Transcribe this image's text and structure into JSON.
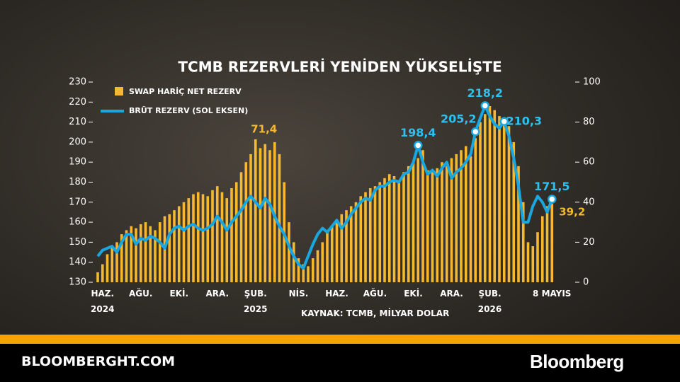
{
  "title": "TCMB REZERVLERİ YENİDEN YÜKSELİŞTE",
  "chart_data": {
    "type": "bar-line",
    "source": "KAYNAK: TCMB, MİLYAR DOLAR",
    "categories": [
      null,
      "HAZ.\n2024",
      null,
      null,
      null,
      null,
      null,
      null,
      null,
      "AĞU.",
      null,
      null,
      null,
      null,
      null,
      null,
      null,
      "EKİ.",
      null,
      null,
      null,
      null,
      null,
      null,
      null,
      "ARA.",
      null,
      null,
      null,
      null,
      null,
      null,
      null,
      "ŞUB.\n2025",
      null,
      null,
      null,
      null,
      null,
      null,
      null,
      null,
      "NİS.",
      null,
      null,
      null,
      null,
      null,
      null,
      null,
      "HAZ.",
      null,
      null,
      null,
      null,
      null,
      null,
      null,
      "AĞU.",
      null,
      null,
      null,
      null,
      null,
      null,
      null,
      "EKİ.",
      null,
      null,
      null,
      null,
      null,
      null,
      null,
      "ARA.",
      null,
      null,
      null,
      null,
      null,
      null,
      null,
      "ŞUB.\n2026",
      null,
      null,
      null,
      null,
      null,
      null,
      null,
      null,
      null,
      null,
      null,
      null,
      "8 MAYIS"
    ],
    "ylim": [
      130,
      230
    ],
    "yticks": [
      130,
      140,
      150,
      160,
      170,
      180,
      190,
      200,
      210,
      220,
      230
    ],
    "y2lim": [
      0,
      100
    ],
    "y2ticks": [
      0,
      20,
      40,
      60,
      80,
      100
    ],
    "series": [
      {
        "name": "SWAP HARİÇ NET REZERV",
        "type": "bar",
        "axis": "y2",
        "color": "#f5b82e",
        "values": [
          5,
          9,
          14,
          18,
          20,
          24,
          26,
          28,
          27,
          29,
          30,
          28,
          26,
          30,
          33,
          34,
          36,
          38,
          40,
          42,
          44,
          45,
          44,
          43,
          46,
          48,
          45,
          42,
          47,
          50,
          55,
          60,
          64,
          71.4,
          67,
          69,
          66,
          70,
          64,
          50,
          30,
          20,
          12,
          9,
          8,
          12,
          16,
          20,
          26,
          28,
          31,
          34,
          36,
          38,
          40,
          43,
          45,
          47,
          48,
          50,
          52,
          54,
          53,
          51,
          55,
          58,
          60,
          62,
          66,
          56,
          55,
          57,
          60,
          58,
          62,
          64,
          66,
          68,
          63,
          72,
          80,
          84,
          88,
          86,
          83,
          80,
          78,
          70,
          58,
          40,
          20,
          18,
          25,
          33,
          38,
          39.2
        ],
        "value_labels": [
          null,
          null,
          null,
          null,
          null,
          null,
          null,
          null,
          null,
          null,
          null,
          null,
          null,
          null,
          null,
          null,
          null,
          null,
          null,
          null,
          null,
          null,
          null,
          null,
          null,
          null,
          null,
          null,
          null,
          null,
          null,
          null,
          null,
          "71,4",
          null,
          null,
          null,
          null,
          null,
          null,
          null,
          null,
          null,
          null,
          null,
          null,
          null,
          null,
          null,
          null,
          null,
          null,
          null,
          null,
          null,
          null,
          null,
          null,
          null,
          null,
          null,
          null,
          null,
          null,
          null,
          null,
          null,
          null,
          null,
          null,
          null,
          null,
          null,
          null,
          null,
          null,
          null,
          null,
          null,
          null,
          null,
          null,
          null,
          null,
          null,
          null,
          null,
          null,
          null,
          null,
          null,
          null,
          null,
          null,
          null,
          "39,2"
        ]
      },
      {
        "name": "BRÜT REZERV (SOL EKSEN)",
        "type": "line",
        "color": "#1aa7e0",
        "values": [
          143,
          146,
          147,
          148,
          145,
          150,
          154,
          154,
          149,
          152,
          151,
          153,
          152,
          150,
          147,
          154,
          157,
          158,
          156,
          158,
          159,
          157,
          156,
          157,
          159,
          163,
          160,
          156,
          160,
          163,
          166,
          170,
          173,
          170,
          167,
          172,
          169,
          163,
          158,
          154,
          148,
          143,
          139,
          137,
          143,
          149,
          154,
          157,
          155,
          158,
          161,
          157,
          160,
          164,
          167,
          170,
          172,
          171,
          176,
          178,
          178,
          180,
          181,
          180,
          184,
          185,
          190,
          198.4,
          190,
          184,
          186,
          183,
          187,
          190,
          182,
          185,
          187,
          190,
          194,
          205.2,
          212,
          218.2,
          213,
          209,
          207,
          210.3,
          203,
          192,
          178,
          160,
          160,
          168,
          173,
          170,
          165,
          171.5
        ],
        "value_labels": [
          null,
          null,
          null,
          null,
          null,
          null,
          null,
          null,
          null,
          null,
          null,
          null,
          null,
          null,
          null,
          null,
          null,
          null,
          null,
          null,
          null,
          null,
          null,
          null,
          null,
          null,
          null,
          null,
          null,
          null,
          null,
          null,
          null,
          null,
          null,
          null,
          null,
          null,
          null,
          null,
          null,
          null,
          null,
          null,
          null,
          null,
          null,
          null,
          null,
          null,
          null,
          null,
          null,
          null,
          null,
          null,
          null,
          null,
          null,
          null,
          null,
          null,
          null,
          null,
          null,
          null,
          null,
          "198,4",
          null,
          null,
          null,
          null,
          null,
          null,
          null,
          null,
          null,
          null,
          null,
          "205,2",
          null,
          "218,2",
          null,
          null,
          null,
          "210,3",
          null,
          null,
          null,
          null,
          null,
          null,
          null,
          null,
          null,
          "171,5"
        ]
      }
    ]
  },
  "footer": {
    "site": "BLOOMBERGHT.COM",
    "brand": "Bloomberg"
  }
}
